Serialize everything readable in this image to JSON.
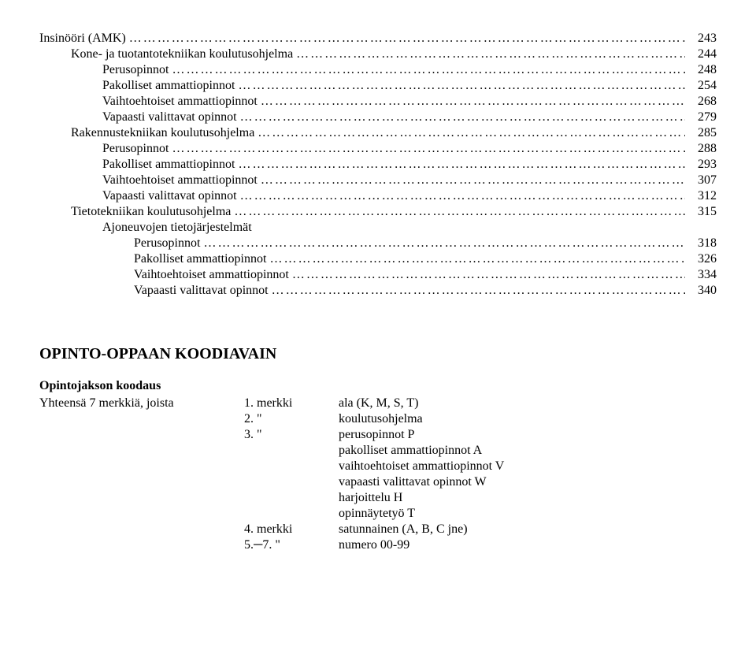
{
  "toc_dots": "…………………………………………………………………………………………………………………………………………………………………………………………",
  "toc": [
    {
      "indent": 0,
      "label": "Insinööri (AMK)",
      "page": "243"
    },
    {
      "indent": 1,
      "label": "Kone- ja tuotantotekniikan koulutusohjelma",
      "page": "244"
    },
    {
      "indent": 2,
      "label": "Perusopinnot",
      "page": "248"
    },
    {
      "indent": 2,
      "label": "Pakolliset ammattiopinnot",
      "page": "254"
    },
    {
      "indent": 2,
      "label": "Vaihtoehtoiset ammattiopinnot",
      "page": "268"
    },
    {
      "indent": 2,
      "label": "Vapaasti valittavat opinnot",
      "page": "279"
    },
    {
      "indent": 1,
      "label": "Rakennustekniikan koulutusohjelma",
      "page": "285"
    },
    {
      "indent": 2,
      "label": "Perusopinnot",
      "page": "288"
    },
    {
      "indent": 2,
      "label": "Pakolliset ammattiopinnot",
      "page": "293"
    },
    {
      "indent": 2,
      "label": "Vaihtoehtoiset ammattiopinnot",
      "page": "307"
    },
    {
      "indent": 2,
      "label": "Vapaasti valittavat opinnot",
      "page": "312"
    },
    {
      "indent": 1,
      "label": "Tietotekniikan koulutusohjelma",
      "page": "315"
    },
    {
      "indent": 2,
      "label": "Ajoneuvojen tietojärjestelmät",
      "page": ""
    },
    {
      "indent": 3,
      "label": "Perusopinnot",
      "page": "318"
    },
    {
      "indent": 3,
      "label": "Pakolliset ammattiopinnot",
      "page": "326"
    },
    {
      "indent": 3,
      "label": "Vaihtoehtoiset ammattiopinnot",
      "page": "334"
    },
    {
      "indent": 3,
      "label": "Vapaasti valittavat opinnot",
      "page": "340"
    }
  ],
  "heading": "OPINTO-OPPAAN KOODIAVAIN",
  "sub": {
    "line1": "Opintojakson koodaus",
    "line2_left": "Yhteensä 7 merkkiä, joista"
  },
  "key": [
    {
      "c2": "1. merkki",
      "c3": "ala (K, M, S, T)"
    },
    {
      "c2": "2.   \"",
      "c3": "koulutusohjelma"
    },
    {
      "c2": "3.   \"",
      "c3": "perusopinnot P"
    },
    {
      "c2": "",
      "c3": "pakolliset ammattiopinnot A"
    },
    {
      "c2": "",
      "c3": "vaihtoehtoiset ammattiopinnot V"
    },
    {
      "c2": "",
      "c3": "vapaasti valittavat opinnot W"
    },
    {
      "c2": "",
      "c3": "harjoittelu H"
    },
    {
      "c2": "",
      "c3": "opinnäytetyö T"
    },
    {
      "c2": "4. merkki",
      "c3": "satunnainen (A, B, C jne)"
    },
    {
      "c2": "5.─7.   \"",
      "c3": "numero 00-99"
    }
  ]
}
